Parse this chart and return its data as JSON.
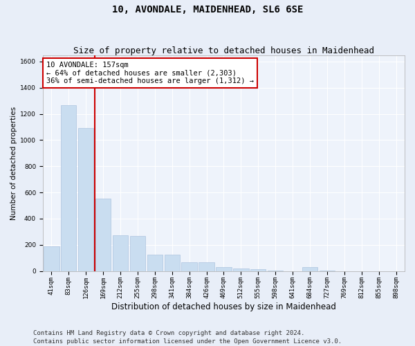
{
  "title": "10, AVONDALE, MAIDENHEAD, SL6 6SE",
  "subtitle": "Size of property relative to detached houses in Maidenhead",
  "xlabel": "Distribution of detached houses by size in Maidenhead",
  "ylabel": "Number of detached properties",
  "categories": [
    "41sqm",
    "83sqm",
    "126sqm",
    "169sqm",
    "212sqm",
    "255sqm",
    "298sqm",
    "341sqm",
    "384sqm",
    "426sqm",
    "469sqm",
    "512sqm",
    "555sqm",
    "598sqm",
    "641sqm",
    "684sqm",
    "727sqm",
    "769sqm",
    "812sqm",
    "855sqm",
    "898sqm"
  ],
  "values": [
    190,
    1265,
    1090,
    555,
    270,
    265,
    125,
    125,
    65,
    65,
    30,
    20,
    15,
    5,
    0,
    30,
    5,
    0,
    0,
    0,
    0
  ],
  "bar_color": "#c9ddf0",
  "bar_edge_color": "#adc4df",
  "vline_x": 2.5,
  "vline_color": "#cc0000",
  "annotation_text": "10 AVONDALE: 157sqm\n← 64% of detached houses are smaller (2,303)\n36% of semi-detached houses are larger (1,312) →",
  "annotation_box_color": "#ffffff",
  "annotation_box_edge": "#cc0000",
  "ylim": [
    0,
    1650
  ],
  "yticks": [
    0,
    200,
    400,
    600,
    800,
    1000,
    1200,
    1400,
    1600
  ],
  "bg_color": "#e8eef8",
  "plot_bg_color": "#eef3fb",
  "grid_color": "#ffffff",
  "footer": "Contains HM Land Registry data © Crown copyright and database right 2024.\nContains public sector information licensed under the Open Government Licence v3.0.",
  "title_fontsize": 10,
  "subtitle_fontsize": 9,
  "xlabel_fontsize": 8.5,
  "ylabel_fontsize": 7.5,
  "tick_fontsize": 6.5,
  "annotation_fontsize": 7.5,
  "footer_fontsize": 6.5
}
